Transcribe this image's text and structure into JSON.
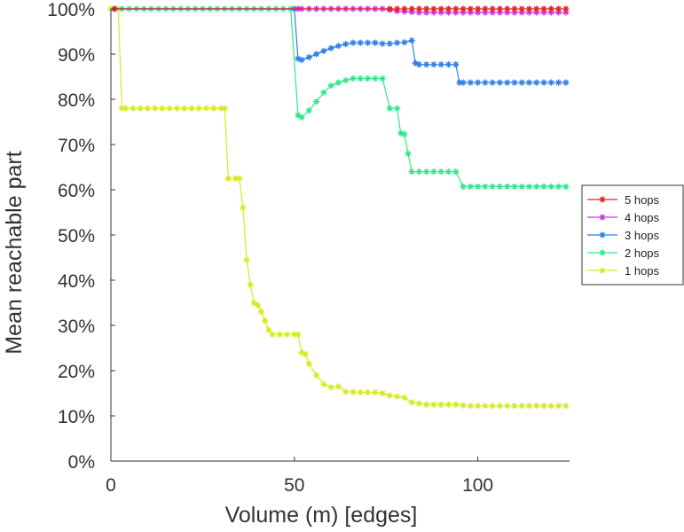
{
  "chart_data": {
    "type": "line",
    "title": "",
    "xlabel": "Volume (m) [edges]",
    "ylabel": "Mean reachable part",
    "xlim": [
      0,
      125
    ],
    "ylim": [
      0,
      100
    ],
    "xticks": [
      0,
      50,
      100
    ],
    "yticks": [
      0,
      10,
      20,
      30,
      40,
      50,
      60,
      70,
      80,
      90,
      100
    ],
    "ytick_labels": [
      "0%",
      "10%",
      "20%",
      "30%",
      "40%",
      "50%",
      "60%",
      "70%",
      "80%",
      "90%",
      "100%"
    ],
    "grid": false,
    "legend_position": "right",
    "legend": [
      "5 hops",
      "4 hops",
      "3 hops",
      "2 hops",
      "1 hops"
    ],
    "series": [
      {
        "name": "5 hops",
        "color": "#e8231f",
        "x": [
          1,
          76,
          78,
          80,
          82,
          84,
          86,
          88,
          90,
          92,
          94,
          96,
          98,
          100,
          102,
          104,
          106,
          108,
          110,
          112,
          114,
          116,
          118,
          120,
          122,
          124
        ],
        "y": [
          100,
          100,
          100,
          100,
          100,
          100,
          100,
          100,
          100,
          100,
          100,
          100,
          100,
          100,
          100,
          100,
          100,
          100,
          100,
          100,
          100,
          100,
          100,
          100,
          100,
          100
        ]
      },
      {
        "name": "4 hops",
        "color": "#cc33e6",
        "x": [
          1,
          51,
          52,
          54,
          56,
          58,
          60,
          62,
          64,
          66,
          68,
          70,
          72,
          74,
          76,
          78,
          80,
          82,
          84,
          86,
          88,
          90,
          92,
          94,
          96,
          98,
          100,
          102,
          104,
          106,
          108,
          110,
          112,
          114,
          116,
          118,
          120,
          122,
          124
        ],
        "y": [
          100,
          100,
          100,
          100,
          100,
          100,
          100,
          100,
          100,
          100,
          100,
          100,
          100,
          100,
          99.8,
          99.5,
          99.4,
          99.3,
          99.2,
          99.2,
          99.2,
          99.2,
          99.2,
          99.2,
          99.2,
          99.2,
          99.2,
          99.2,
          99.2,
          99.2,
          99.2,
          99.2,
          99.2,
          99.2,
          99.2,
          99.2,
          99.2,
          99.2,
          99.2
        ]
      },
      {
        "name": "3 hops",
        "color": "#2e7fe8",
        "x": [
          1,
          50,
          51,
          52,
          54,
          56,
          58,
          60,
          62,
          64,
          66,
          68,
          70,
          72,
          74,
          76,
          78,
          80,
          82,
          83,
          84,
          86,
          88,
          90,
          92,
          94,
          95,
          96,
          98,
          100,
          102,
          104,
          106,
          108,
          110,
          112,
          114,
          116,
          118,
          120,
          122,
          124
        ],
        "y": [
          100,
          100,
          89,
          88.7,
          89.3,
          90,
          90.7,
          91.3,
          91.8,
          92.2,
          92.5,
          92.5,
          92.5,
          92.5,
          92.3,
          92.3,
          92.5,
          92.6,
          93,
          88,
          87.7,
          87.7,
          87.7,
          87.7,
          87.7,
          87.7,
          83.7,
          83.7,
          83.7,
          83.7,
          83.7,
          83.7,
          83.7,
          83.7,
          83.7,
          83.7,
          83.7,
          83.7,
          83.7,
          83.7,
          83.7,
          83.7
        ]
      },
      {
        "name": "2 hops",
        "color": "#33e68c",
        "x": [
          1,
          3,
          5,
          7,
          9,
          11,
          13,
          15,
          17,
          19,
          21,
          23,
          25,
          27,
          29,
          31,
          33,
          35,
          37,
          39,
          41,
          43,
          45,
          47,
          49,
          51,
          52,
          54,
          56,
          58,
          60,
          62,
          64,
          66,
          68,
          70,
          72,
          74,
          76,
          78,
          79,
          80,
          81,
          82,
          84,
          86,
          88,
          90,
          92,
          94,
          96,
          98,
          100,
          102,
          104,
          106,
          108,
          110,
          112,
          114,
          116,
          118,
          120,
          122,
          124
        ],
        "y": [
          100,
          100,
          100,
          100,
          100,
          100,
          100,
          100,
          100,
          100,
          100,
          100,
          100,
          100,
          100,
          100,
          100,
          100,
          100,
          100,
          100,
          100,
          100,
          100,
          100,
          76.5,
          76,
          77.5,
          79.5,
          81.5,
          83,
          83.7,
          84.2,
          84.6,
          84.6,
          84.6,
          84.6,
          84.6,
          78,
          78,
          72.5,
          72.3,
          68,
          64,
          64,
          64,
          64,
          64,
          64,
          64,
          60.7,
          60.7,
          60.7,
          60.7,
          60.7,
          60.7,
          60.7,
          60.7,
          60.7,
          60.7,
          60.7,
          60.7,
          60.7,
          60.7,
          60.7
        ]
      },
      {
        "name": "1 hops",
        "color": "#d6ea22",
        "x": [
          0,
          2,
          3,
          4,
          6,
          8,
          10,
          12,
          14,
          16,
          18,
          20,
          22,
          24,
          26,
          28,
          30,
          31,
          32,
          34,
          35,
          36,
          37,
          38,
          39,
          40,
          41,
          42,
          43,
          44,
          46,
          48,
          50,
          51,
          52,
          53,
          54,
          56,
          58,
          60,
          62,
          64,
          66,
          68,
          70,
          72,
          74,
          76,
          78,
          80,
          82,
          84,
          86,
          88,
          90,
          92,
          94,
          96,
          98,
          100,
          102,
          104,
          106,
          108,
          110,
          112,
          114,
          116,
          118,
          120,
          122,
          124
        ],
        "y": [
          100,
          100,
          78,
          78,
          78,
          78,
          78,
          78,
          78,
          78,
          78,
          78,
          78,
          78,
          78,
          78,
          78,
          78,
          62.5,
          62.5,
          62.5,
          56,
          44.5,
          39,
          35,
          34.5,
          33,
          31,
          29,
          28,
          28,
          28,
          28,
          28,
          24,
          23.7,
          21.5,
          19,
          17,
          16.3,
          16.5,
          15.3,
          15.3,
          15.2,
          15.2,
          15.2,
          15,
          14.5,
          14.3,
          14,
          13,
          12.7,
          12.5,
          12.5,
          12.5,
          12.5,
          12.5,
          12.3,
          12.2,
          12.2,
          12.2,
          12.2,
          12.2,
          12.2,
          12.2,
          12.2,
          12.2,
          12.2,
          12.2,
          12.2,
          12.2,
          12.2
        ]
      }
    ]
  }
}
